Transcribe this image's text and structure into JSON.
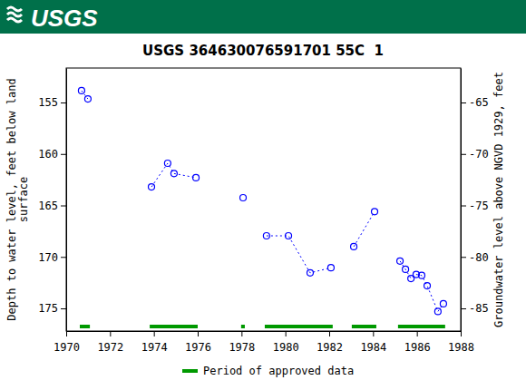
{
  "logo_text": "USGS",
  "chart_data": {
    "type": "scatter",
    "title": "USGS 364630076591701 55C  1",
    "ylabel": [
      "Depth to water level, feet below land",
      "surface"
    ],
    "y2label": "Groundwater level above NGVD 1929, feet",
    "xlim": [
      1970,
      1988
    ],
    "xticks": [
      1970,
      1972,
      1974,
      1976,
      1978,
      1980,
      1982,
      1984,
      1986,
      1988
    ],
    "ylim": [
      151.65,
      177.2
    ],
    "yticks": [
      155,
      160,
      165,
      170,
      175
    ],
    "y2lim": [
      -61.65,
      -87.2
    ],
    "y2ticks": [
      -65,
      -70,
      -75,
      -80,
      -85
    ],
    "grid": false,
    "series": [
      {
        "color": "#0000ff",
        "marker": "circle",
        "line_style": "dashed",
        "x": [
          1970.7,
          1970.99
        ],
        "values": [
          153.85,
          154.65
        ]
      },
      {
        "color": "#0000ff",
        "marker": "circle",
        "line_style": "dashed",
        "x": [
          1973.89,
          1974.63,
          1974.92,
          1975.92
        ],
        "values": [
          163.2,
          160.9,
          161.9,
          162.3
        ]
      },
      {
        "color": "#0000ff",
        "marker": "circle",
        "line_style": "dashed",
        "x": [
          1978.07
        ],
        "values": [
          164.25
        ]
      },
      {
        "color": "#0000ff",
        "marker": "circle",
        "line_style": "dashed",
        "x": [
          1979.14,
          1980.14,
          1981.13,
          1982.08
        ],
        "values": [
          167.95,
          167.95,
          171.55,
          171.05
        ]
      },
      {
        "color": "#0000ff",
        "marker": "circle",
        "line_style": "dashed",
        "x": [
          1983.12,
          1984.07
        ],
        "values": [
          169.0,
          165.6
        ]
      },
      {
        "color": "#0000ff",
        "marker": "circle",
        "line_style": "dashed",
        "x": [
          1985.23,
          1985.48,
          1985.73,
          1985.97,
          1986.22,
          1986.47,
          1986.96,
          1987.21
        ],
        "values": [
          170.4,
          171.2,
          172.1,
          171.7,
          171.8,
          172.8,
          175.3,
          174.55
        ]
      }
    ],
    "approved_periods": {
      "name": "Period of approved data",
      "color": "#009900",
      "ranges": [
        [
          1970.62,
          1971.08
        ],
        [
          1973.81,
          1976.0
        ],
        [
          1977.98,
          1978.15
        ],
        [
          1979.06,
          1982.16
        ],
        [
          1983.03,
          1984.15
        ],
        [
          1985.14,
          1987.29
        ]
      ]
    },
    "legend": "bottom"
  }
}
